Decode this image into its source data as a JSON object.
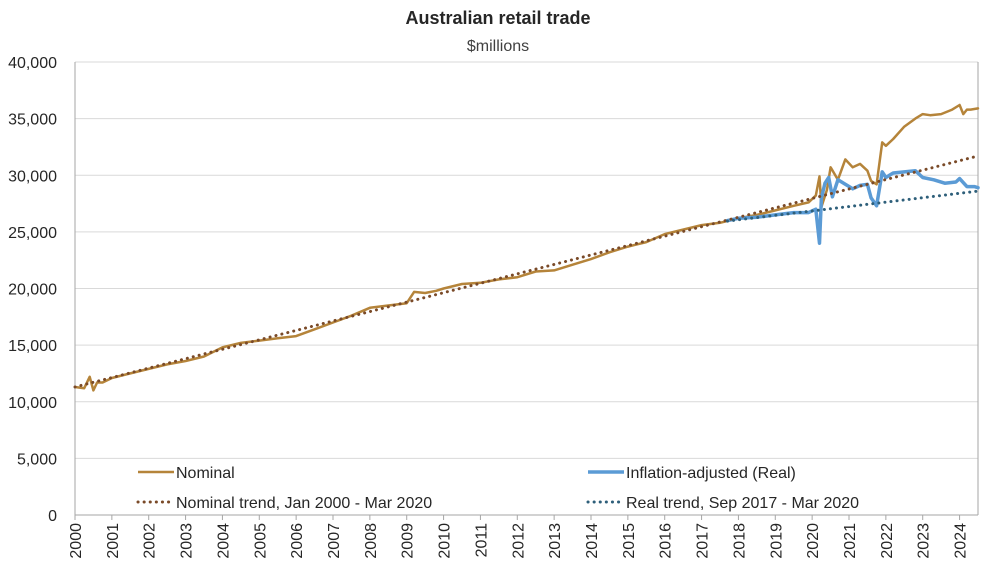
{
  "chart_data": {
    "type": "line",
    "title": "Australian retail trade",
    "subtitle": "$millions",
    "xlabel": "",
    "ylabel": "",
    "xlim": [
      2000,
      2024.5
    ],
    "ylim": [
      0,
      40000
    ],
    "yticks": [
      0,
      5000,
      10000,
      15000,
      20000,
      25000,
      30000,
      35000,
      40000
    ],
    "ytick_labels": [
      "0",
      "5,000",
      "10,000",
      "15,000",
      "20,000",
      "25,000",
      "30,000",
      "35,000",
      "40,000"
    ],
    "xticks": [
      2000,
      2001,
      2002,
      2003,
      2004,
      2005,
      2006,
      2007,
      2008,
      2009,
      2010,
      2011,
      2012,
      2013,
      2014,
      2015,
      2016,
      2017,
      2018,
      2019,
      2020,
      2021,
      2022,
      2023,
      2024
    ],
    "xtick_labels": [
      "2000",
      "2001",
      "2002",
      "2003",
      "2004",
      "2005",
      "2006",
      "2007",
      "2008",
      "2009",
      "2010",
      "2011",
      "2012",
      "2013",
      "2014",
      "2015",
      "2016",
      "2017",
      "2018",
      "2019",
      "2020",
      "2021",
      "2022",
      "2023",
      "2024"
    ],
    "grid": true,
    "series": [
      {
        "name": "Nominal",
        "style": "solid",
        "color": "#b5843a",
        "x": [
          2000.0,
          2000.25,
          2000.4,
          2000.5,
          2000.6,
          2000.75,
          2001.0,
          2001.5,
          2002.0,
          2002.5,
          2003.0,
          2003.5,
          2004.0,
          2004.5,
          2005.0,
          2005.5,
          2006.0,
          2006.5,
          2007.0,
          2007.5,
          2008.0,
          2008.5,
          2009.0,
          2009.2,
          2009.5,
          2009.8,
          2010.0,
          2010.5,
          2011.0,
          2011.5,
          2012.0,
          2012.5,
          2013.0,
          2013.5,
          2014.0,
          2014.5,
          2015.0,
          2015.5,
          2016.0,
          2016.5,
          2017.0,
          2017.5,
          2018.0,
          2018.5,
          2019.0,
          2019.5,
          2019.9,
          2020.1,
          2020.2,
          2020.25,
          2020.4,
          2020.5,
          2020.7,
          2020.9,
          2021.1,
          2021.3,
          2021.5,
          2021.6,
          2021.75,
          2021.9,
          2022.0,
          2022.2,
          2022.5,
          2022.8,
          2023.0,
          2023.2,
          2023.5,
          2023.8,
          2024.0,
          2024.1,
          2024.2,
          2024.3,
          2024.5
        ],
        "values": [
          11300,
          11200,
          12200,
          11000,
          11700,
          11700,
          12100,
          12500,
          12900,
          13300,
          13600,
          14000,
          14800,
          15200,
          15400,
          15600,
          15800,
          16400,
          17000,
          17600,
          18300,
          18500,
          18700,
          19700,
          19600,
          19800,
          20000,
          20400,
          20500,
          20800,
          21000,
          21500,
          21600,
          22100,
          22600,
          23200,
          23700,
          24100,
          24800,
          25200,
          25600,
          25800,
          26200,
          26500,
          26900,
          27300,
          27600,
          28200,
          29900,
          27200,
          28700,
          30700,
          29600,
          31400,
          30700,
          31000,
          30400,
          29500,
          29200,
          32900,
          32600,
          33200,
          34300,
          35000,
          35400,
          35300,
          35400,
          35800,
          36200,
          35400,
          35800,
          35800,
          35900
        ]
      },
      {
        "name": "Inflation-adjusted (Real)",
        "style": "solid",
        "color": "#5b9bd5",
        "x": [
          2017.7,
          2018.0,
          2018.5,
          2019.0,
          2019.5,
          2019.9,
          2020.1,
          2020.2,
          2020.25,
          2020.35,
          2020.45,
          2020.55,
          2020.7,
          2020.9,
          2021.1,
          2021.3,
          2021.5,
          2021.6,
          2021.75,
          2021.9,
          2022.0,
          2022.2,
          2022.5,
          2022.8,
          2023.0,
          2023.3,
          2023.6,
          2023.9,
          2024.0,
          2024.2,
          2024.4,
          2024.5
        ],
        "values": [
          26000,
          26200,
          26300,
          26500,
          26700,
          26700,
          27000,
          24000,
          28000,
          29300,
          29800,
          28100,
          29600,
          29200,
          28800,
          29100,
          29200,
          28000,
          27300,
          30300,
          29800,
          30200,
          30300,
          30400,
          29800,
          29600,
          29300,
          29400,
          29700,
          29000,
          29000,
          28900
        ]
      },
      {
        "name": "Nominal trend, Jan 2000 - Mar 2020",
        "style": "dotted",
        "color": "#7a4a28",
        "x": [
          2000.0,
          2024.5
        ],
        "values": [
          11300,
          31700
        ]
      },
      {
        "name": "Real trend, Sep 2017 - Mar 2020",
        "style": "dotted",
        "color": "#2e5f7a",
        "x": [
          2017.7,
          2024.5
        ],
        "values": [
          25950,
          28600
        ]
      }
    ],
    "legend": [
      {
        "label": "Nominal",
        "series": 0
      },
      {
        "label": "Inflation-adjusted (Real)",
        "series": 1
      },
      {
        "label": "Nominal trend, Jan 2000 - Mar 2020",
        "series": 2
      },
      {
        "label": "Real trend, Sep 2017 - Mar 2020",
        "series": 3
      }
    ],
    "legend_position": "bottom-inside"
  }
}
